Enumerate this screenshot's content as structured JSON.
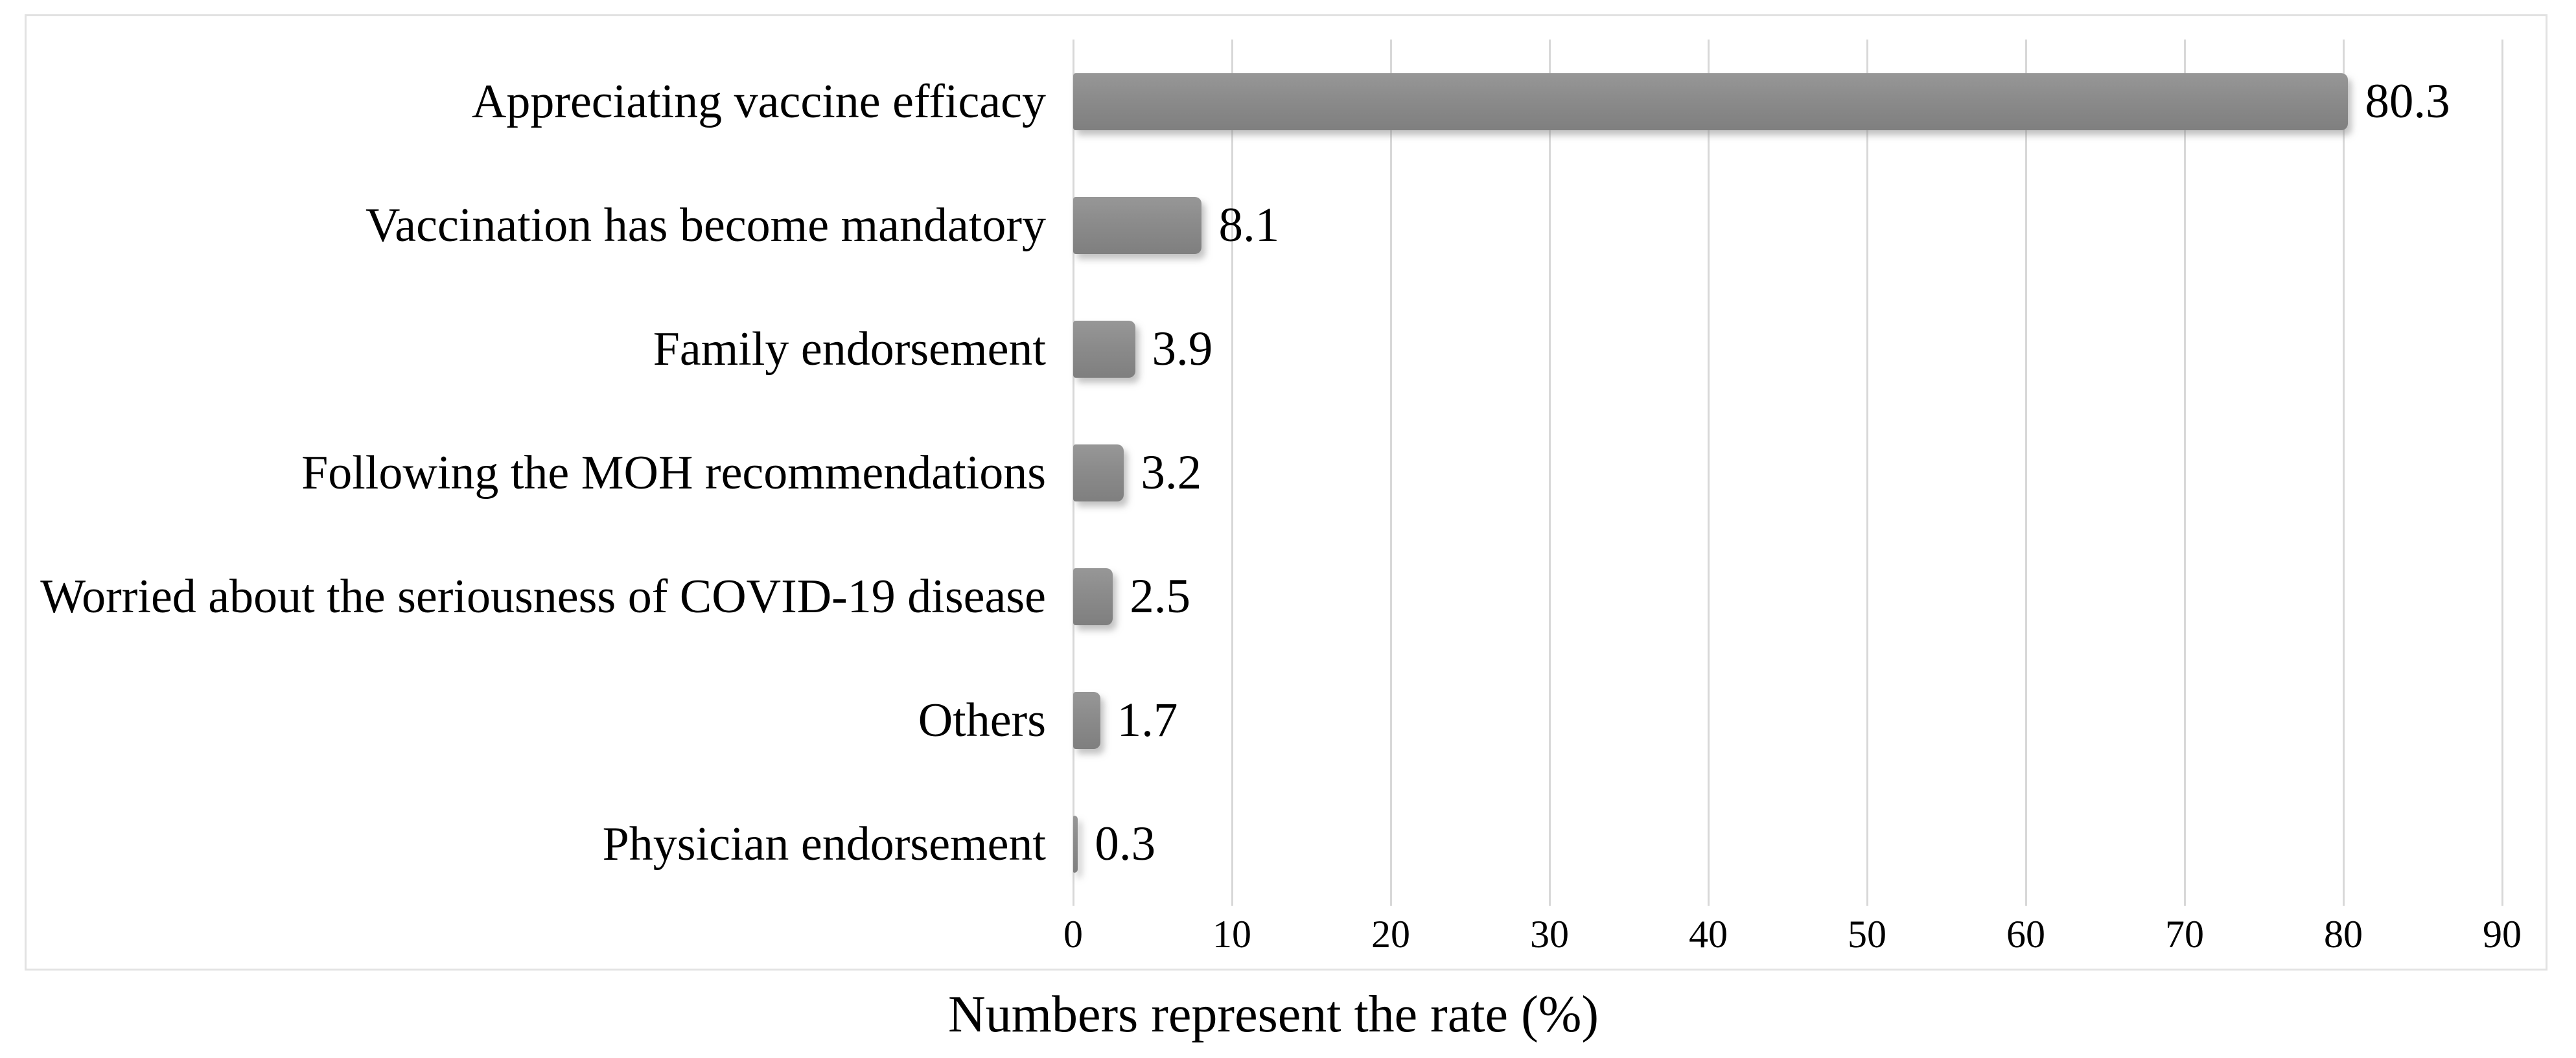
{
  "chart_data": {
    "type": "bar",
    "orientation": "horizontal",
    "categories": [
      "Appreciating vaccine efficacy",
      "Vaccination has become mandatory",
      "Family endorsement",
      "Following the MOH recommendations",
      "Worried about the seriousness of COVID-19 disease",
      "Others",
      "Physician endorsement"
    ],
    "values": [
      80.3,
      8.1,
      3.9,
      3.2,
      2.5,
      1.7,
      0.3
    ],
    "value_labels": [
      "80.3",
      "8.1",
      "3.9",
      "3.2",
      "2.5",
      "1.7",
      "0.3"
    ],
    "title": "",
    "xlabel": "",
    "ylabel": "",
    "x_ticks": [
      0,
      10,
      20,
      30,
      40,
      50,
      60,
      70,
      80,
      90
    ],
    "x_tick_labels": [
      "0",
      "10",
      "20",
      "30",
      "40",
      "50",
      "60",
      "70",
      "80",
      "90"
    ],
    "xlim": [
      0,
      92.9
    ],
    "grid": "vertical-gridlines",
    "legend": "none",
    "bar_color": "#8b8b8b",
    "gridline_color": "#d8d8d8",
    "border_color": "#e2e2e2",
    "caption": "Numbers represent the rate (%)"
  }
}
